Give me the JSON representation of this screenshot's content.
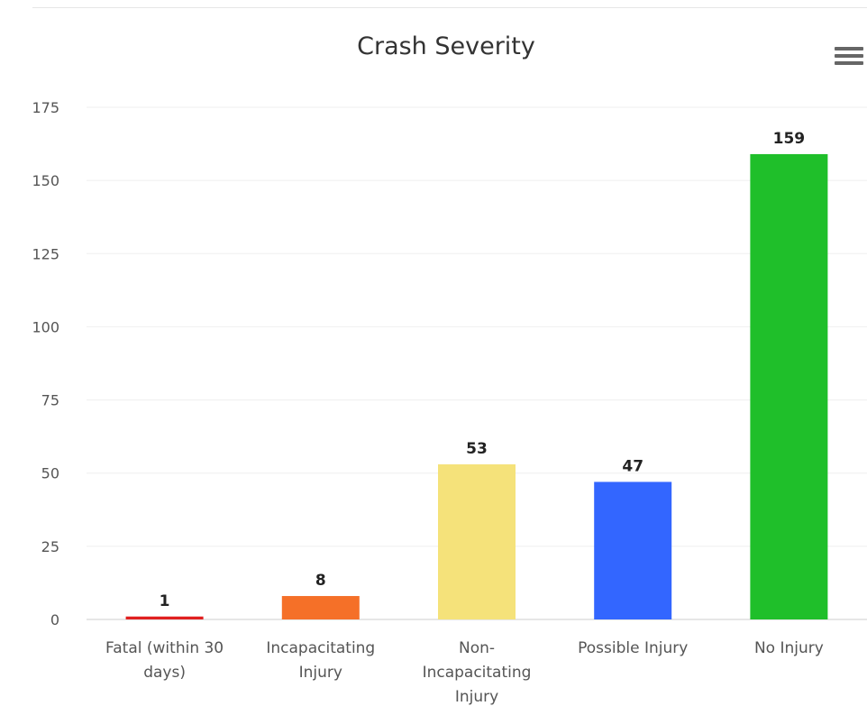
{
  "chart_data": {
    "type": "bar",
    "title": "Crash Severity",
    "categories": [
      [
        "Fatal (within 30",
        "days)"
      ],
      [
        "Incapacitating",
        "Injury"
      ],
      [
        "Non-",
        "Incapacitating",
        "Injury"
      ],
      [
        "Possible Injury"
      ],
      [
        "No Injury"
      ]
    ],
    "values": [
      1,
      8,
      53,
      47,
      159
    ],
    "colors": [
      "#e02020",
      "#f57028",
      "#f5e27a",
      "#3366ff",
      "#1fbf2a"
    ],
    "ylim": [
      0,
      175
    ],
    "yticks": [
      0,
      25,
      50,
      75,
      100,
      125,
      150,
      175
    ],
    "grid": true,
    "legend": "none"
  },
  "menu": {
    "icon": "hamburger-menu-icon"
  }
}
